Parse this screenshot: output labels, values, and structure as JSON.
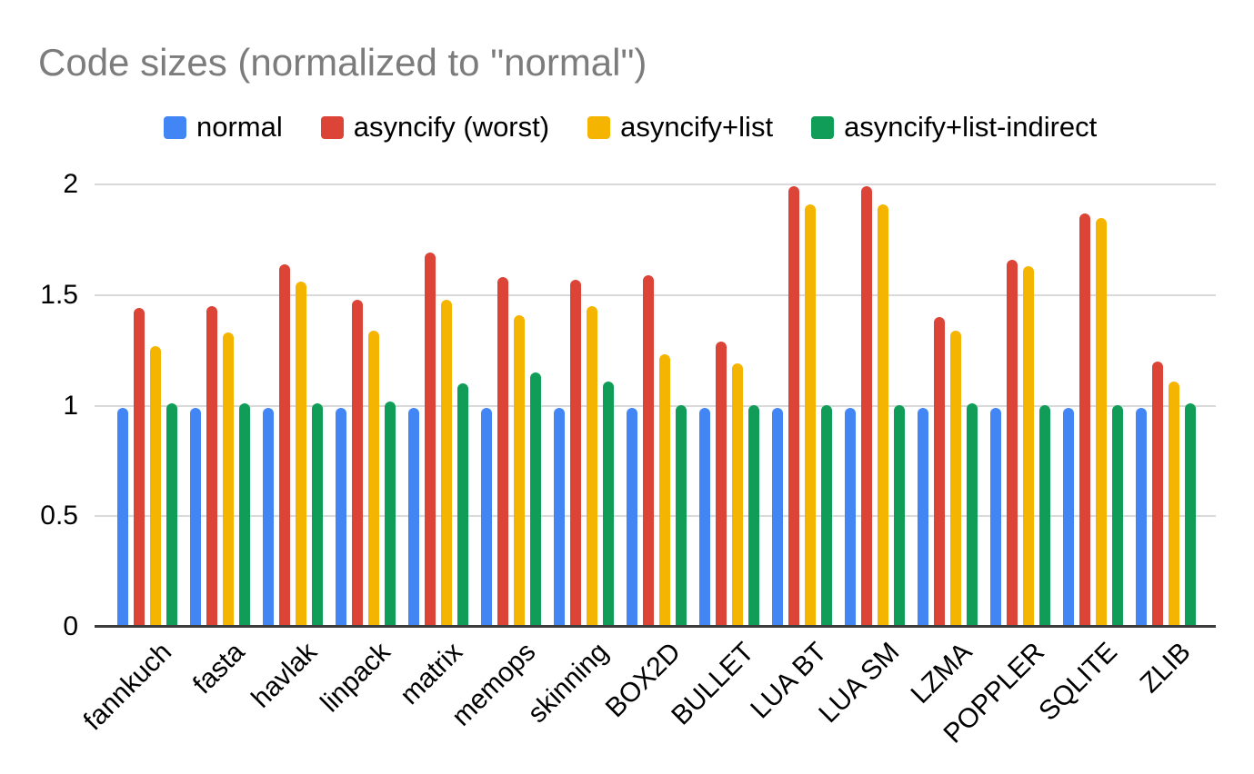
{
  "chart_data": {
    "type": "bar",
    "title": "Code sizes (normalized to \"normal\")",
    "xlabel": "",
    "ylabel": "",
    "grid": true,
    "legend_position": "top",
    "ylim": [
      0,
      2
    ],
    "y_ticks": [
      {
        "value": 0,
        "label": "0"
      },
      {
        "value": 0.5,
        "label": "0.5"
      },
      {
        "value": 1,
        "label": "1"
      },
      {
        "value": 1.5,
        "label": "1.5"
      },
      {
        "value": 2,
        "label": "2"
      }
    ],
    "categories": [
      "fannkuch",
      "fasta",
      "havlak",
      "linpack",
      "matrix",
      "memops",
      "skinning",
      "BOX2D",
      "BULLET",
      "LUA BT",
      "LUA SM",
      "LZMA",
      "POPPLER",
      "SQLITE",
      "ZLIB"
    ],
    "series": [
      {
        "name": "normal",
        "color": "#4285F4",
        "values": [
          0.99,
          0.99,
          0.99,
          0.99,
          0.99,
          0.99,
          0.99,
          0.99,
          0.99,
          0.99,
          0.99,
          0.99,
          0.99,
          0.99,
          0.99
        ]
      },
      {
        "name": "asyncify (worst)",
        "color": "#DB4437",
        "values": [
          1.44,
          1.45,
          1.64,
          1.48,
          1.69,
          1.58,
          1.57,
          1.59,
          1.29,
          1.99,
          1.99,
          1.4,
          1.66,
          1.87,
          1.2
        ]
      },
      {
        "name": "asyncify+list",
        "color": "#F4B400",
        "values": [
          1.27,
          1.33,
          1.56,
          1.34,
          1.48,
          1.41,
          1.45,
          1.23,
          1.19,
          1.91,
          1.91,
          1.34,
          1.63,
          1.85,
          1.11
        ]
      },
      {
        "name": "asyncify+list-indirect",
        "color": "#0F9D58",
        "values": [
          1.01,
          1.01,
          1.01,
          1.02,
          1.1,
          1.15,
          1.11,
          1.0,
          1.0,
          1.0,
          1.0,
          1.01,
          1.0,
          1.0,
          1.01
        ]
      }
    ]
  },
  "colors": {
    "background": "#FFFFFF",
    "title_text": "#7C7C7C",
    "axis_text": "#000000",
    "gridline": "#D9D9D9",
    "baseline": "#3C3C3C"
  }
}
